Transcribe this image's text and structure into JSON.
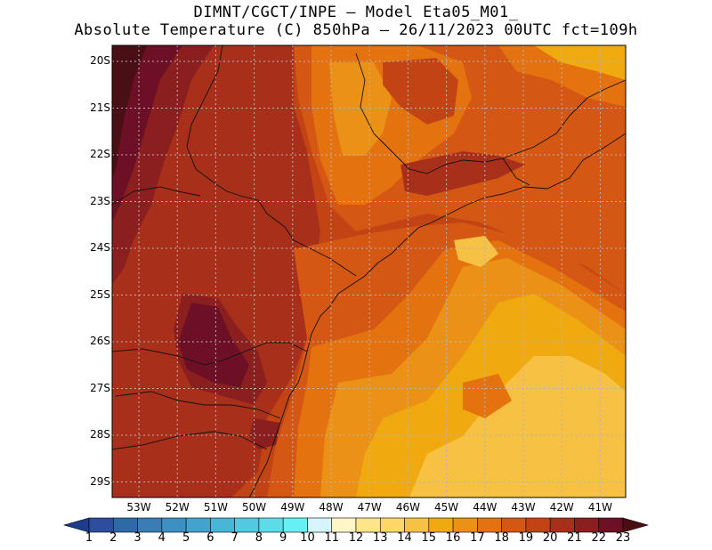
{
  "title_line1": "DIMNT/CGCT/INPE –  Model Eta05_M01_",
  "title_line2": "Absolute Temperature (C) 850hPa –  26/11/2023 00UTC fct=109h",
  "lat_labels": [
    "20S",
    "21S",
    "22S",
    "23S",
    "24S",
    "25S",
    "26S",
    "27S",
    "28S",
    "29S"
  ],
  "lon_labels": [
    "53W",
    "52W",
    "51W",
    "50W",
    "49W",
    "48W",
    "47W",
    "46W",
    "45W",
    "44W",
    "43W",
    "42W",
    "41W"
  ],
  "colorbar": {
    "labels": [
      "1",
      "2",
      "3",
      "4",
      "5",
      "6",
      "7",
      "8",
      "9",
      "10",
      "11",
      "12",
      "13",
      "14",
      "15",
      "16",
      "17",
      "18",
      "19",
      "20",
      "21",
      "22",
      "23"
    ],
    "colors": [
      "#1e3c8c",
      "#2d4e9e",
      "#2f6aa8",
      "#3a7db5",
      "#3d90c2",
      "#43a3cc",
      "#49b6d7",
      "#53c9e0",
      "#5edbe9",
      "#66f0f5",
      "#d6f6ff",
      "#fff6c8",
      "#ffe58a",
      "#ffd766",
      "#f7c243",
      "#f0aa10",
      "#eb9216",
      "#e4720f",
      "#d45714",
      "#c24414",
      "#a8301a",
      "#8b1f1f",
      "#6e1025",
      "#4a0f14"
    ]
  },
  "colors": {
    "t22": "#6e1025",
    "t23": "#4a0f14",
    "t21": "#8b1f1f",
    "t20": "#a8301a",
    "t19": "#c24414",
    "t18": "#d45714",
    "t17": "#e4720f",
    "t16": "#eb9216",
    "t15": "#f0aa10",
    "t14": "#f7c243",
    "t13": "#ffd766"
  }
}
